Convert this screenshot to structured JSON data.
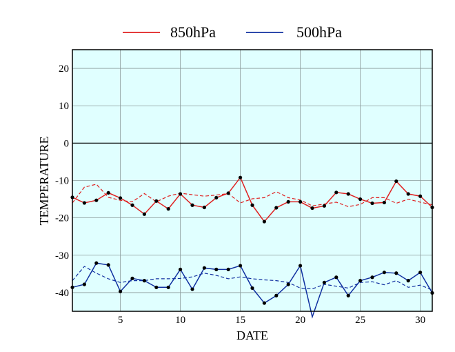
{
  "chart_data": {
    "type": "line",
    "xlabel": "DATE",
    "ylabel": "TEMPERATURE",
    "xlim": [
      1,
      31
    ],
    "ylim": [
      -45,
      25
    ],
    "xticks": [
      5,
      10,
      15,
      20,
      25,
      30
    ],
    "yticks": [
      20,
      10,
      0,
      -10,
      -20,
      -30,
      -40
    ],
    "grid": true,
    "background": "#e0ffff",
    "legend_position": "top-center",
    "x": [
      1,
      2,
      3,
      4,
      5,
      6,
      7,
      8,
      9,
      10,
      11,
      12,
      13,
      14,
      15,
      16,
      17,
      18,
      19,
      20,
      21,
      22,
      23,
      24,
      25,
      26,
      27,
      28,
      29,
      30,
      31
    ],
    "series": [
      {
        "name": "850hPa",
        "color": "#e02020",
        "style": "solid",
        "markers": true,
        "values": [
          -14.5,
          -16,
          -15.3,
          -13.3,
          -14.7,
          -16.6,
          -19,
          -15.5,
          -17.6,
          -13.6,
          -16.6,
          -17.2,
          -14.6,
          -13.4,
          -9.2,
          -16.6,
          -21,
          -17.3,
          -15.7,
          -15.7,
          -17.4,
          -16.8,
          -13.2,
          -13.6,
          -15,
          -16.1,
          -15.9,
          -10.2,
          -13.6,
          -14.2,
          -17.2
        ]
      },
      {
        "name": "500hPa",
        "color": "#1030a0",
        "style": "solid",
        "markers": true,
        "values": [
          -38.6,
          -37.8,
          -32.1,
          -32.6,
          -39.7,
          -36.2,
          -36.8,
          -38.6,
          -38.6,
          -33.8,
          -39.1,
          -33.4,
          -33.8,
          -33.8,
          -32.8,
          -38.8,
          -42.8,
          -40.8,
          -37.8,
          -32.8,
          -46.5,
          -37.3,
          -35.9,
          -40.8,
          -36.8,
          -35.9,
          -34.6,
          -34.8,
          -36.8,
          -34.6,
          -40.1
        ]
      },
      {
        "name": "",
        "color": "#e02020",
        "style": "dashed",
        "markers": false,
        "values": [
          -16,
          -11.8,
          -11,
          -14.5,
          -15.3,
          -15.7,
          -13.5,
          -15.7,
          -14.2,
          -13.4,
          -13.8,
          -14.2,
          -13.9,
          -13.5,
          -16,
          -14.9,
          -14.6,
          -13,
          -14.6,
          -15.2,
          -16.8,
          -16.3,
          -15.8,
          -17,
          -16.4,
          -14.6,
          -14.6,
          -16.1,
          -15,
          -15.8,
          -16.5
        ]
      },
      {
        "name": "",
        "color": "#1030a0",
        "style": "dashed",
        "markers": false,
        "values": [
          -36.8,
          -33,
          -34.8,
          -36.3,
          -37.3,
          -36.8,
          -36.8,
          -36.3,
          -36.3,
          -36.2,
          -35.8,
          -34.8,
          -35.4,
          -36.3,
          -35.8,
          -36.3,
          -36.6,
          -36.8,
          -37.3,
          -38.8,
          -39,
          -37.8,
          -38.3,
          -38.8,
          -37.3,
          -37.1,
          -37.9,
          -36.8,
          -38.6,
          -38,
          -39.3
        ]
      }
    ]
  }
}
